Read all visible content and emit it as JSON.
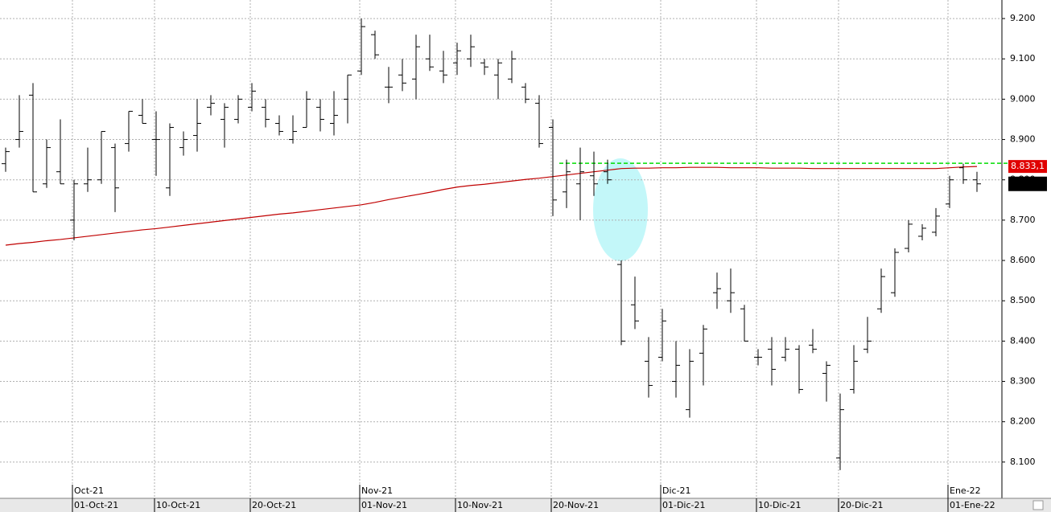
{
  "chart_data": {
    "type": "ohlc",
    "color": "#000000",
    "categories": [
      null,
      null,
      null,
      null,
      null,
      "01-Oct-21",
      null,
      null,
      null,
      null,
      null,
      "10-Oct-21",
      null,
      null,
      null,
      null,
      null,
      null,
      "20-Oct-21",
      null,
      null,
      null,
      null,
      null,
      null,
      null,
      "01-Nov-21",
      null,
      null,
      null,
      null,
      null,
      null,
      "10-Nov-21",
      null,
      null,
      null,
      null,
      null,
      null,
      "20-Nov-21",
      null,
      null,
      null,
      null,
      null,
      null,
      null,
      "01-Dic-21",
      null,
      null,
      null,
      null,
      null,
      null,
      "10-Dic-21",
      null,
      null,
      null,
      null,
      null,
      "20-Dic-21",
      null,
      null,
      null,
      null,
      null,
      null,
      null,
      "01-Ene-22",
      null,
      null
    ],
    "x_groups": [
      {
        "label": "Oct-21",
        "at": "01-Oct-21"
      },
      {
        "label": "Nov-21",
        "at": "01-Nov-21"
      },
      {
        "label": "Dic-21",
        "at": "01-Dic-21"
      },
      {
        "label": "Ene-22",
        "at": "01-Ene-22"
      }
    ],
    "open": [
      8840,
      8900,
      9010,
      8790,
      8820,
      8700,
      8790,
      8800,
      8880,
      8890,
      8960,
      8900,
      8780,
      8880,
      8910,
      8980,
      8950,
      8950,
      8980,
      8980,
      8940,
      8900,
      8930,
      8980,
      8940,
      9000,
      9070,
      9160,
      9030,
      9060,
      9050,
      9100,
      9070,
      9090,
      9100,
      9090,
      9060,
      9050,
      9030,
      8990,
      8930,
      8770,
      8790,
      8810,
      8820,
      8590,
      8490,
      8350,
      8360,
      8300,
      8230,
      8370,
      8520,
      8500,
      8480,
      8360,
      8380,
      8360,
      8380,
      8390,
      8320,
      8110,
      8280,
      8380,
      8480,
      8520,
      8630,
      8660,
      8670,
      8740,
      8830,
      8800
    ],
    "high": [
      8880,
      9010,
      9040,
      8900,
      8950,
      8800,
      8880,
      8920,
      8890,
      8970,
      9000,
      8970,
      8940,
      8920,
      9000,
      9010,
      8990,
      9010,
      9040,
      9000,
      8960,
      8960,
      9020,
      9000,
      9020,
      9060,
      9200,
      9170,
      9080,
      9100,
      9160,
      9160,
      9120,
      9140,
      9160,
      9100,
      9100,
      9120,
      9040,
      9010,
      8950,
      8850,
      8880,
      8870,
      8850,
      8600,
      8560,
      8410,
      8480,
      8400,
      8380,
      8440,
      8570,
      8580,
      8490,
      8380,
      8410,
      8410,
      8390,
      8430,
      8350,
      8270,
      8390,
      8460,
      8580,
      8630,
      8700,
      8690,
      8730,
      8810,
      8840,
      8820
    ],
    "low": [
      8820,
      8880,
      8770,
      8780,
      8790,
      8650,
      8770,
      8790,
      8720,
      8870,
      8940,
      8810,
      8760,
      8860,
      8870,
      8960,
      8880,
      8940,
      8970,
      8930,
      8910,
      8890,
      8930,
      8920,
      8910,
      8940,
      9060,
      9100,
      8990,
      9020,
      9000,
      9070,
      9040,
      9060,
      9080,
      9060,
      9000,
      9040,
      8990,
      8880,
      8710,
      8730,
      8700,
      8760,
      8790,
      8390,
      8430,
      8260,
      8350,
      8260,
      8210,
      8290,
      8480,
      8470,
      8400,
      8340,
      8290,
      8350,
      8270,
      8370,
      8250,
      8080,
      8270,
      8370,
      8470,
      8510,
      8620,
      8650,
      8660,
      8730,
      8790,
      8770
    ],
    "close": [
      8870,
      8920,
      8770,
      8880,
      8790,
      8790,
      8800,
      8920,
      8780,
      8970,
      8940,
      8900,
      8930,
      8900,
      8940,
      8990,
      8980,
      9000,
      9020,
      8950,
      8920,
      8920,
      9000,
      8950,
      8960,
      9060,
      9180,
      9110,
      9030,
      9040,
      9130,
      9080,
      9060,
      9120,
      9130,
      9080,
      9090,
      9100,
      9000,
      8890,
      8750,
      8820,
      8820,
      8790,
      8800,
      8400,
      8450,
      8290,
      8450,
      8340,
      8350,
      8430,
      8530,
      8520,
      8400,
      8360,
      8330,
      8380,
      8280,
      8380,
      8340,
      8230,
      8350,
      8400,
      8560,
      8620,
      8690,
      8680,
      8710,
      8800,
      8800,
      8790
    ],
    "ma": {
      "color": "#c00000",
      "values": [
        8638,
        8642,
        8645,
        8649,
        8652,
        8656,
        8660,
        8664,
        8668,
        8672,
        8676,
        8679,
        8683,
        8687,
        8691,
        8695,
        8699,
        8703,
        8707,
        8711,
        8715,
        8718,
        8722,
        8726,
        8730,
        8734,
        8738,
        8744,
        8751,
        8757,
        8763,
        8769,
        8776,
        8782,
        8786,
        8789,
        8793,
        8797,
        8801,
        8804,
        8808,
        8812,
        8816,
        8820,
        8824,
        8828,
        8829,
        8829,
        8830,
        8830,
        8831,
        8831,
        8831,
        8830,
        8830,
        8830,
        8829,
        8829,
        8829,
        8828,
        8828,
        8828,
        8828,
        8828,
        8828,
        8828,
        8828,
        8828,
        8828,
        8830,
        8832,
        8833.1
      ],
      "last_value": 8833.1,
      "last_label": "8.833,1"
    },
    "resistance": {
      "value": 8841,
      "color": "#00dd00",
      "from": "20-Nov-21"
    },
    "ylim": [
      8010,
      9246
    ],
    "yticks": [
      {
        "value": 8100,
        "label": "8.100"
      },
      {
        "value": 8200,
        "label": "8.200"
      },
      {
        "value": 8300,
        "label": "8.300"
      },
      {
        "value": 8400,
        "label": "8.400"
      },
      {
        "value": 8500,
        "label": "8.500"
      },
      {
        "value": 8600,
        "label": "8.600"
      },
      {
        "value": 8700,
        "label": "8.700"
      },
      {
        "value": 8800,
        "label": "8.800"
      },
      {
        "value": 8900,
        "label": "8.900"
      },
      {
        "value": 9000,
        "label": "9.000"
      },
      {
        "value": 9100,
        "label": "9.100"
      },
      {
        "value": 9200,
        "label": "9.200"
      }
    ],
    "grid": true
  }
}
